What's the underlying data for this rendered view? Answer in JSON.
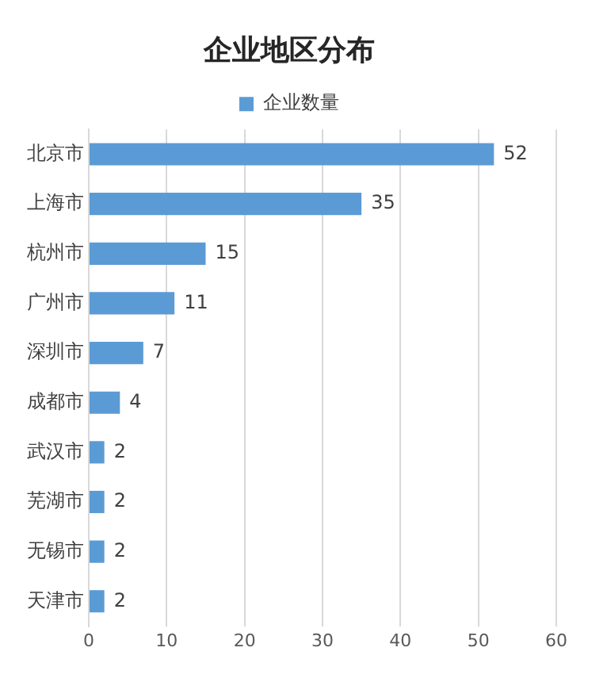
{
  "chart_data": {
    "type": "bar",
    "orientation": "horizontal",
    "title": "企业地区分布",
    "categories": [
      "北京市",
      "上海市",
      "杭州市",
      "广州市",
      "深圳市",
      "成都市",
      "武汉市",
      "芜湖市",
      "无锡市",
      "天津市"
    ],
    "series": [
      {
        "name": "企业数量",
        "color": "#5b9bd5",
        "values": [
          52,
          35,
          15,
          11,
          7,
          4,
          2,
          2,
          2,
          2
        ]
      }
    ],
    "xlim": [
      0,
      60
    ],
    "xticks": [
      0,
      10,
      20,
      30,
      40,
      50,
      60
    ],
    "grid": "x",
    "legend": "top",
    "data_labels": true
  }
}
